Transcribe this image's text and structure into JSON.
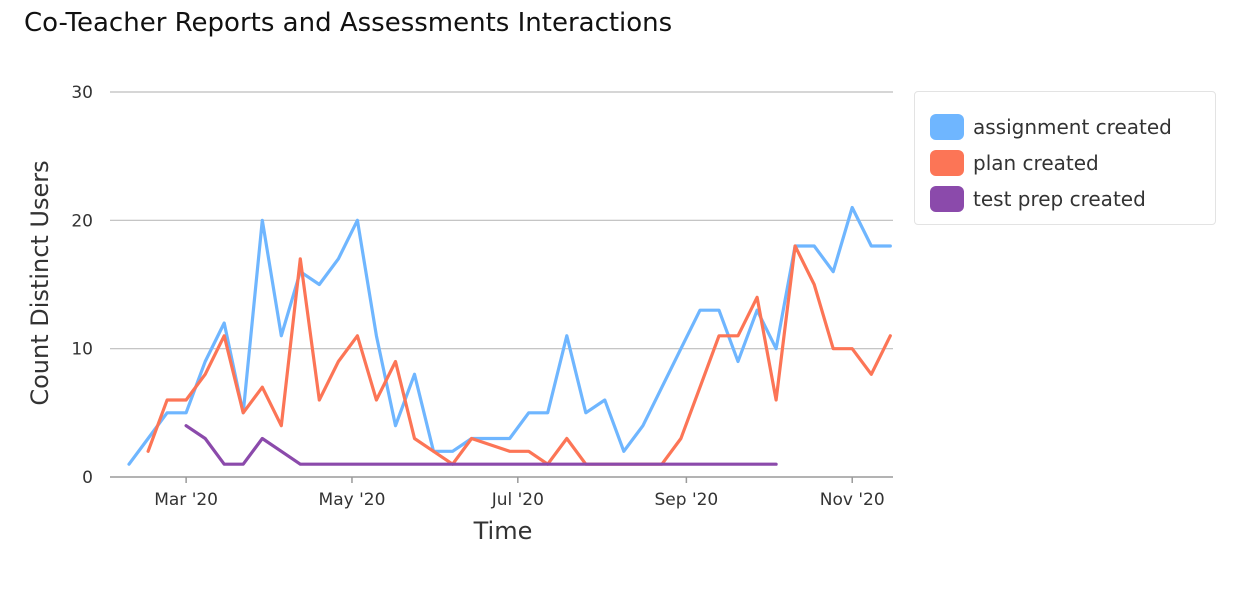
{
  "chart_data": {
    "type": "line",
    "title": "Co-Teacher Reports and Assessments Interactions",
    "xlabel": "Time",
    "ylabel": "Count Distinct Users",
    "ylim": [
      0,
      30
    ],
    "yticks": [
      0,
      10,
      20,
      30
    ],
    "xlim": [
      "2020-02-02",
      "2020-11-16"
    ],
    "xticks": [
      {
        "date": "2020-03-01",
        "label": "Mar '20"
      },
      {
        "date": "2020-05-01",
        "label": "May '20"
      },
      {
        "date": "2020-07-01",
        "label": "Jul '20"
      },
      {
        "date": "2020-09-01",
        "label": "Sep '20"
      },
      {
        "date": "2020-11-01",
        "label": "Nov '20"
      }
    ],
    "grid": true,
    "legend_position": "right",
    "series": [
      {
        "name": "assignment created",
        "color": "#6fb6ff",
        "points": [
          [
            "2020-02-09",
            1
          ],
          [
            "2020-02-16",
            3
          ],
          [
            "2020-02-23",
            5
          ],
          [
            "2020-03-01",
            5
          ],
          [
            "2020-03-08",
            9
          ],
          [
            "2020-03-15",
            12
          ],
          [
            "2020-03-22",
            5
          ],
          [
            "2020-03-29",
            20
          ],
          [
            "2020-04-05",
            11
          ],
          [
            "2020-04-12",
            16
          ],
          [
            "2020-04-19",
            15
          ],
          [
            "2020-04-26",
            17
          ],
          [
            "2020-05-03",
            20
          ],
          [
            "2020-05-10",
            11
          ],
          [
            "2020-05-17",
            4
          ],
          [
            "2020-05-24",
            8
          ],
          [
            "2020-05-31",
            2
          ],
          [
            "2020-06-07",
            2
          ],
          [
            "2020-06-14",
            3
          ],
          [
            "2020-06-21",
            3
          ],
          [
            "2020-06-28",
            3
          ],
          [
            "2020-07-05",
            5
          ],
          [
            "2020-07-12",
            5
          ],
          [
            "2020-07-19",
            11
          ],
          [
            "2020-07-26",
            5
          ],
          [
            "2020-08-02",
            6
          ],
          [
            "2020-08-09",
            2
          ],
          [
            "2020-08-16",
            4
          ],
          [
            "2020-08-23",
            7
          ],
          [
            "2020-08-30",
            10
          ],
          [
            "2020-09-06",
            13
          ],
          [
            "2020-09-13",
            13
          ],
          [
            "2020-09-20",
            9
          ],
          [
            "2020-09-27",
            13
          ],
          [
            "2020-10-04",
            10
          ],
          [
            "2020-10-11",
            18
          ],
          [
            "2020-10-18",
            18
          ],
          [
            "2020-10-25",
            16
          ],
          [
            "2020-11-01",
            21
          ],
          [
            "2020-11-08",
            18
          ],
          [
            "2020-11-15",
            18
          ]
        ]
      },
      {
        "name": "plan created",
        "color": "#fc7556",
        "points": [
          [
            "2020-02-16",
            2
          ],
          [
            "2020-02-23",
            6
          ],
          [
            "2020-03-01",
            6
          ],
          [
            "2020-03-08",
            8
          ],
          [
            "2020-03-15",
            11
          ],
          [
            "2020-03-22",
            5
          ],
          [
            "2020-03-29",
            7
          ],
          [
            "2020-04-05",
            4
          ],
          [
            "2020-04-12",
            17
          ],
          [
            "2020-04-19",
            6
          ],
          [
            "2020-04-26",
            9
          ],
          [
            "2020-05-03",
            11
          ],
          [
            "2020-05-10",
            6
          ],
          [
            "2020-05-17",
            9
          ],
          [
            "2020-05-24",
            3
          ],
          [
            "2020-05-31",
            2
          ],
          [
            "2020-06-07",
            1
          ],
          [
            "2020-06-14",
            3
          ],
          [
            "2020-06-21",
            2.5
          ],
          [
            "2020-06-28",
            2
          ],
          [
            "2020-07-05",
            2
          ],
          [
            "2020-07-12",
            1
          ],
          [
            "2020-07-19",
            3
          ],
          [
            "2020-07-26",
            1
          ],
          [
            "2020-08-02",
            1
          ],
          [
            "2020-08-09",
            1
          ],
          [
            "2020-08-16",
            1
          ],
          [
            "2020-08-23",
            1
          ],
          [
            "2020-08-30",
            3
          ],
          [
            "2020-09-06",
            7
          ],
          [
            "2020-09-13",
            11
          ],
          [
            "2020-09-20",
            11
          ],
          [
            "2020-09-27",
            14
          ],
          [
            "2020-10-04",
            6
          ],
          [
            "2020-10-11",
            18
          ],
          [
            "2020-10-18",
            15
          ],
          [
            "2020-10-25",
            10
          ],
          [
            "2020-11-01",
            10
          ],
          [
            "2020-11-08",
            8
          ],
          [
            "2020-11-15",
            11
          ]
        ]
      },
      {
        "name": "test prep created",
        "color": "#8b4aab",
        "points": [
          [
            "2020-03-01",
            4
          ],
          [
            "2020-03-08",
            3
          ],
          [
            "2020-03-15",
            1
          ],
          [
            "2020-03-22",
            1
          ],
          [
            "2020-03-29",
            3
          ],
          [
            "2020-04-05",
            2
          ],
          [
            "2020-04-12",
            1
          ],
          [
            "2020-04-19",
            1
          ],
          [
            "2020-04-26",
            1
          ],
          [
            "2020-05-03",
            1
          ],
          [
            "2020-05-10",
            1
          ],
          [
            "2020-05-17",
            1
          ],
          [
            "2020-05-24",
            1
          ],
          [
            "2020-05-31",
            1
          ],
          [
            "2020-06-07",
            1
          ],
          [
            "2020-06-14",
            1
          ],
          [
            "2020-06-21",
            1
          ],
          [
            "2020-06-28",
            1
          ],
          [
            "2020-07-05",
            1
          ],
          [
            "2020-07-12",
            1
          ],
          [
            "2020-07-19",
            1
          ],
          [
            "2020-07-26",
            1
          ],
          [
            "2020-08-02",
            1
          ],
          [
            "2020-08-09",
            1
          ],
          [
            "2020-08-16",
            1
          ],
          [
            "2020-08-23",
            1
          ],
          [
            "2020-08-30",
            1
          ],
          [
            "2020-09-06",
            1
          ],
          [
            "2020-09-13",
            1
          ],
          [
            "2020-09-20",
            1
          ],
          [
            "2020-09-27",
            1
          ],
          [
            "2020-10-04",
            1
          ]
        ]
      }
    ]
  }
}
